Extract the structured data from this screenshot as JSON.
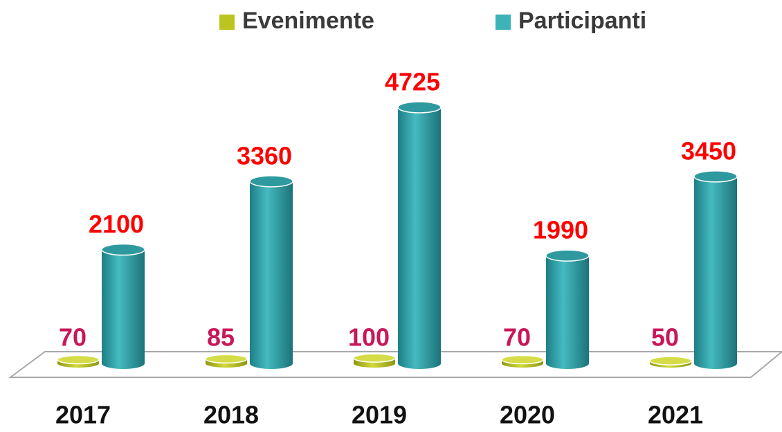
{
  "chart_data": {
    "type": "cylinder",
    "categories": [
      "2017",
      "2018",
      "2019",
      "2020",
      "2021"
    ],
    "series": [
      {
        "name": "Evenimente",
        "color": "#bcc41f",
        "label_color": "#c8175a",
        "values": [
          70,
          85,
          100,
          70,
          50
        ]
      },
      {
        "name": "Participanti",
        "color": "#3bb3b9",
        "label_color": "#ff0000",
        "values": [
          2100,
          3360,
          4725,
          1990,
          3450
        ]
      }
    ],
    "legend": "top"
  }
}
